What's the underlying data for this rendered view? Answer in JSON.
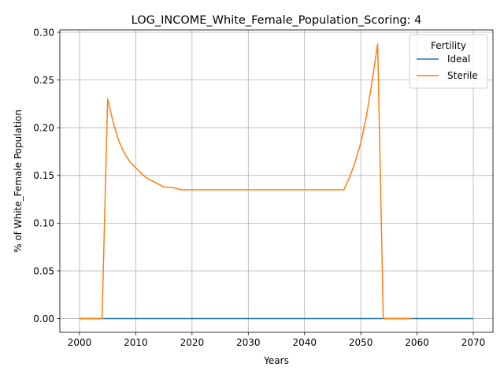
{
  "chart_data": {
    "type": "line",
    "title": "LOG_INCOME_White_Female_Population_Scoring: 4",
    "xlabel": "Years",
    "ylabel": "% of White_Female Population",
    "xlim": [
      1996.5,
      2073.5
    ],
    "ylim": [
      -0.0144,
      0.3025
    ],
    "xticks": [
      2000,
      2010,
      2020,
      2030,
      2040,
      2050,
      2060,
      2070
    ],
    "yticks": [
      0.0,
      0.05,
      0.1,
      0.15,
      0.2,
      0.25,
      0.3
    ],
    "ytick_labels": [
      "0.00",
      "0.05",
      "0.10",
      "0.15",
      "0.20",
      "0.25",
      "0.30"
    ],
    "grid": true,
    "legend": {
      "title": "Fertility",
      "placement": "top-right"
    },
    "series": [
      {
        "name": "Ideal",
        "color": "#1f77b4",
        "x": [
          2000,
          2070
        ],
        "y": [
          0.0,
          0.0
        ]
      },
      {
        "name": "Sterile",
        "color": "#ff7f0e",
        "x": [
          2000,
          2004,
          2005,
          2006,
          2007,
          2008,
          2009,
          2010,
          2011,
          2012,
          2013,
          2014,
          2015,
          2016,
          2017,
          2018,
          2020,
          2030,
          2040,
          2047,
          2048,
          2049,
          2050,
          2051,
          2052,
          2053,
          2054,
          2059
        ],
        "y": [
          0.0,
          0.0,
          0.23,
          0.205,
          0.186,
          0.173,
          0.164,
          0.158,
          0.152,
          0.147,
          0.144,
          0.141,
          0.138,
          0.1375,
          0.1368,
          0.135,
          0.135,
          0.135,
          0.135,
          0.135,
          0.148,
          0.164,
          0.184,
          0.212,
          0.248,
          0.288,
          0.0,
          0.0
        ]
      }
    ]
  }
}
